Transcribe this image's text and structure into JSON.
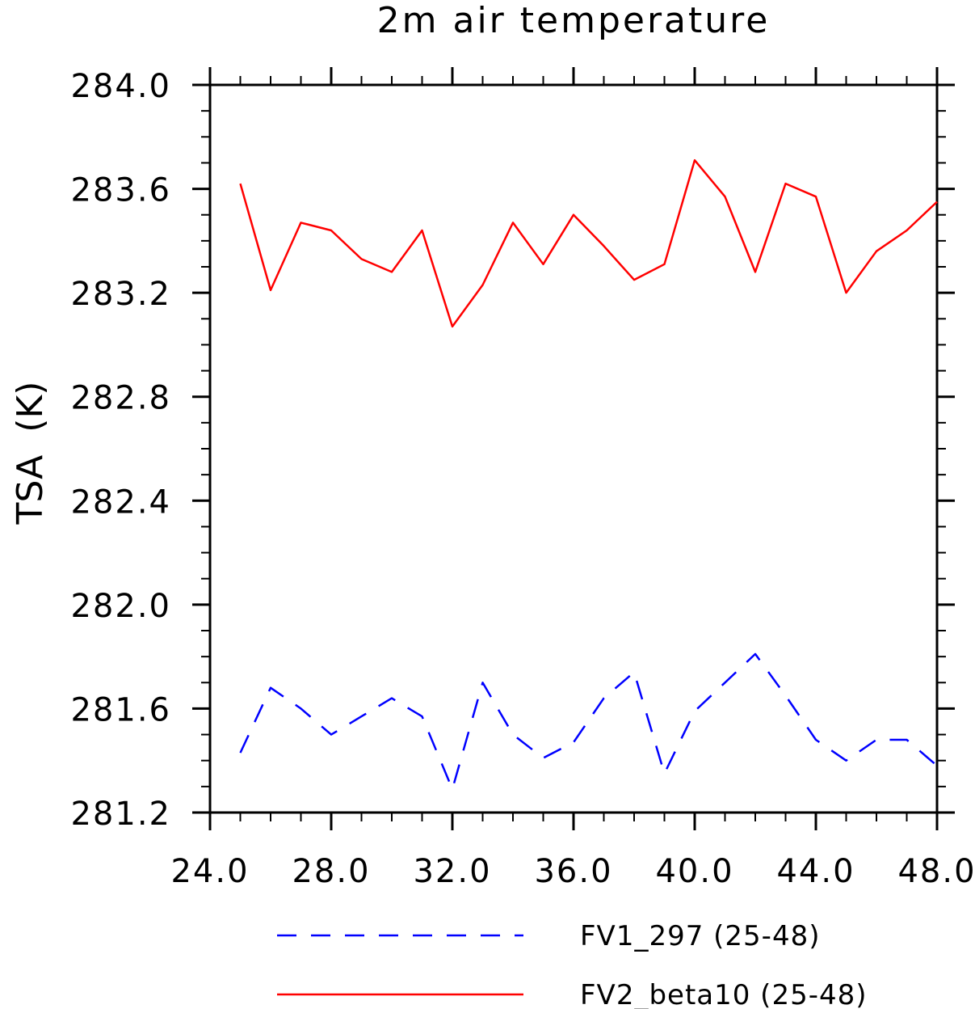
{
  "chart_data": {
    "type": "line",
    "title": "2m air temperature",
    "xlabel": "",
    "ylabel": "TSA  (K)",
    "xlim": [
      24.0,
      48.0
    ],
    "ylim": [
      281.2,
      284.0
    ],
    "x_ticks": [
      "24.0",
      "28.0",
      "32.0",
      "36.0",
      "40.0",
      "44.0",
      "48.0"
    ],
    "y_ticks": [
      "281.2",
      "281.6",
      "282.0",
      "282.4",
      "282.8",
      "283.2",
      "283.6",
      "284.0"
    ],
    "grid": false,
    "legend_position": "bottom",
    "x": [
      25,
      26,
      27,
      28,
      29,
      30,
      31,
      32,
      33,
      34,
      35,
      36,
      37,
      38,
      39,
      40,
      41,
      42,
      43,
      44,
      45,
      46,
      47,
      48
    ],
    "series": [
      {
        "name": "FV1_297 (25-48)",
        "color": "#0000ff",
        "style": "dashed",
        "values": [
          281.43,
          281.68,
          281.6,
          281.5,
          281.57,
          281.64,
          281.57,
          281.29,
          281.7,
          281.5,
          281.41,
          281.47,
          281.64,
          281.74,
          281.35,
          281.59,
          281.7,
          281.81,
          281.65,
          281.48,
          281.4,
          281.48,
          281.48,
          281.38
        ]
      },
      {
        "name": "FV2_beta10 (25-48)",
        "color": "#ff0000",
        "style": "solid",
        "values": [
          283.62,
          283.21,
          283.47,
          283.44,
          283.33,
          283.28,
          283.44,
          283.07,
          283.23,
          283.47,
          283.31,
          283.5,
          283.38,
          283.25,
          283.31,
          283.71,
          283.57,
          283.28,
          283.62,
          283.57,
          283.2,
          283.36,
          283.44,
          283.55
        ]
      }
    ]
  }
}
